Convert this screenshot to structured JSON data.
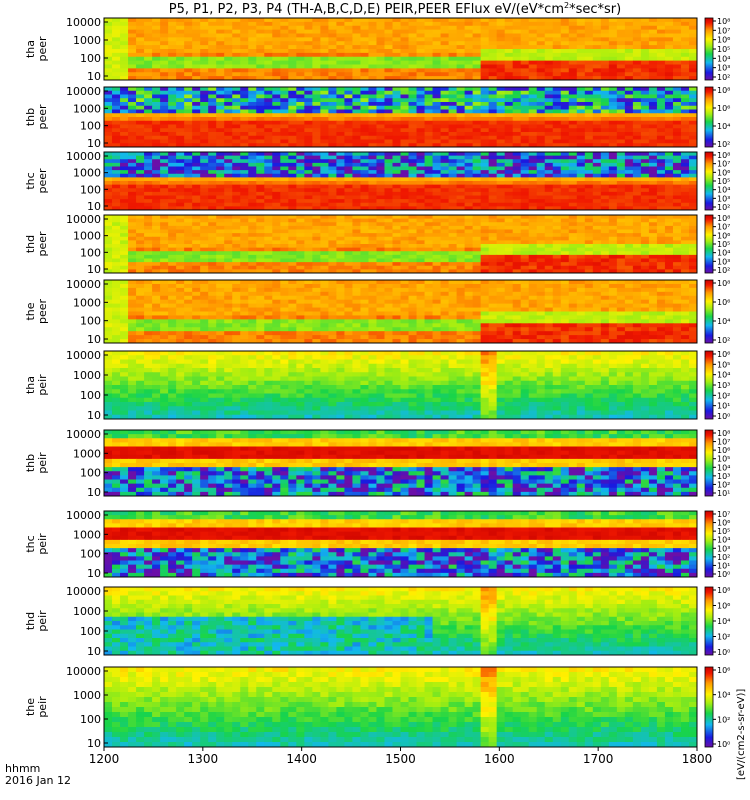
{
  "chart_data": {
    "type": "heatmap",
    "title": "P5, P1, P2, P3, P4 (TH-A,B,C,D,E) PEIR,PEER EFlux eV/(eV*cm²*sec*sr)",
    "title_main": "P5, P1, P2, P3, P4 (TH-A,B,C,D,E) PEIR,PEER EFlux eV/(eV*cm",
    "title_sup": "2",
    "title_tail": "*sec*sr)",
    "colorbar_unit_label": "[eV/(cm2-s-sr-eV)]",
    "x_axis": {
      "label_line1": "hhmm",
      "label_line2": "2016 Jan 12",
      "ticks": [
        "1200",
        "1300",
        "1400",
        "1500",
        "1600",
        "1700",
        "1800"
      ],
      "range": [
        1200,
        1800
      ]
    },
    "panels": [
      {
        "probe": "tha",
        "species": "peer",
        "yticks": [
          "10000",
          "1000",
          "100",
          "10"
        ],
        "colorbar_ticks": [
          "10⁸",
          "10⁷",
          "10⁶",
          "10⁵",
          "10⁴",
          "10³",
          "10²"
        ]
      },
      {
        "probe": "thb",
        "species": "peer",
        "yticks": [
          "10000",
          "1000",
          "100",
          "10"
        ],
        "colorbar_ticks": [
          "10⁸",
          "10⁶",
          "10⁴",
          "10²"
        ]
      },
      {
        "probe": "thc",
        "species": "peer",
        "yticks": [
          "10000",
          "1000",
          "100",
          "10"
        ],
        "colorbar_ticks": [
          "10⁸",
          "10⁷",
          "10⁶",
          "10⁵",
          "10⁴",
          "10³",
          "10²"
        ]
      },
      {
        "probe": "thd",
        "species": "peer",
        "yticks": [
          "10000",
          "1000",
          "100",
          "10"
        ],
        "colorbar_ticks": [
          "10⁸",
          "10⁷",
          "10⁶",
          "10⁵",
          "10⁴",
          "10³",
          "10²"
        ]
      },
      {
        "probe": "the",
        "species": "peer",
        "yticks": [
          "10000",
          "1000",
          "100",
          "10"
        ],
        "colorbar_ticks": [
          "10⁸",
          "10⁶",
          "10⁴",
          "10²"
        ]
      },
      {
        "probe": "tha",
        "species": "peir",
        "yticks": [
          "10000",
          "1000",
          "100",
          "10"
        ],
        "colorbar_ticks": [
          "10⁶",
          "10⁵",
          "10⁴",
          "10³",
          "10²",
          "10¹",
          "10⁰"
        ]
      },
      {
        "probe": "thb",
        "species": "peir",
        "yticks": [
          "10000",
          "1000",
          "100",
          "10"
        ],
        "colorbar_ticks": [
          "10⁸",
          "10⁷",
          "10⁶",
          "10⁵",
          "10⁴",
          "10³",
          "10²",
          "10¹"
        ]
      },
      {
        "probe": "thc",
        "species": "peir",
        "yticks": [
          "10000",
          "1000",
          "100",
          "10"
        ],
        "colorbar_ticks": [
          "10⁷",
          "10⁶",
          "10⁵",
          "10⁴",
          "10³",
          "10²",
          "10¹",
          "10⁰"
        ]
      },
      {
        "probe": "thd",
        "species": "peir",
        "yticks": [
          "10000",
          "1000",
          "100",
          "10"
        ],
        "colorbar_ticks": [
          "10⁸",
          "10⁶",
          "10⁴",
          "10²",
          "10⁰"
        ]
      },
      {
        "probe": "the",
        "species": "peir",
        "yticks": [
          "10000",
          "1000",
          "100",
          "10"
        ],
        "colorbar_ticks": [
          "10⁶",
          "10⁴",
          "10²",
          "10⁰"
        ]
      }
    ]
  }
}
